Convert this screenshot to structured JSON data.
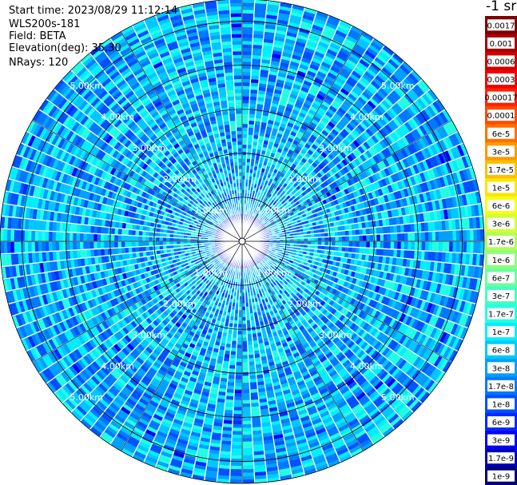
{
  "header": {
    "start_time": "Start time: 2023/08/29 11:12:14",
    "instrument": "WLS200s-181",
    "field": "Field: BETA",
    "elevation": "Elevation(deg): 35.30",
    "nrays": "NRays: 120"
  },
  "colorbar": {
    "unit": "-1 sr",
    "levels": [
      {
        "label": "0.0017",
        "color": "#7f0000"
      },
      {
        "label": "0.001",
        "color": "#a80000"
      },
      {
        "label": "0.0006",
        "color": "#d00000"
      },
      {
        "label": "0.0003",
        "color": "#f40000"
      },
      {
        "label": "0.00017",
        "color": "#ff2200"
      },
      {
        "label": "0.0001",
        "color": "#ff4a00"
      },
      {
        "label": "6e-5",
        "color": "#ff7000"
      },
      {
        "label": "3e-5",
        "color": "#ff9800"
      },
      {
        "label": "1.7e-5",
        "color": "#ffbe00"
      },
      {
        "label": "1e-5",
        "color": "#ffe400"
      },
      {
        "label": "6e-6",
        "color": "#f4ff12"
      },
      {
        "label": "3e-6",
        "color": "#d2ff34"
      },
      {
        "label": "1.7e-6",
        "color": "#aeff58"
      },
      {
        "label": "1e-6",
        "color": "#8cff7a"
      },
      {
        "label": "6e-7",
        "color": "#68ff9e"
      },
      {
        "label": "3e-7",
        "color": "#46ffc0"
      },
      {
        "label": "1.7e-7",
        "color": "#24ffe2"
      },
      {
        "label": "1e-7",
        "color": "#00f0ff"
      },
      {
        "label": "6e-8",
        "color": "#00c8ff"
      },
      {
        "label": "3e-8",
        "color": "#00a0ff"
      },
      {
        "label": "1.7e-8",
        "color": "#0078ff"
      },
      {
        "label": "1e-8",
        "color": "#0050ff"
      },
      {
        "label": "6e-9",
        "color": "#0028ff"
      },
      {
        "label": "3e-9",
        "color": "#0000f6"
      },
      {
        "label": "1.7e-9",
        "color": "#0000b8"
      },
      {
        "label": "1e-9",
        "color": "#00007a"
      }
    ]
  },
  "chart_data": {
    "type": "heatmap",
    "projection": "polar (PPI scan)",
    "field": "BETA",
    "elevation_deg": 35.3,
    "n_rays": 120,
    "max_range_km": 5.5,
    "range_rings_km": [
      1.0,
      2.0,
      3.0,
      4.0,
      5.0
    ],
    "ring_labels": [
      "1.00km",
      "2.00km",
      "3.00km",
      "4.00km",
      "5.00km"
    ],
    "azimuth_gridlines_deg": [
      0,
      30,
      60,
      90,
      120,
      150,
      180,
      210,
      240,
      270,
      300,
      330
    ],
    "dominant_value_range": [
      "1e-8",
      "1.7e-7"
    ],
    "near_field_value_range": [
      "1e-9",
      "1e-8"
    ]
  }
}
